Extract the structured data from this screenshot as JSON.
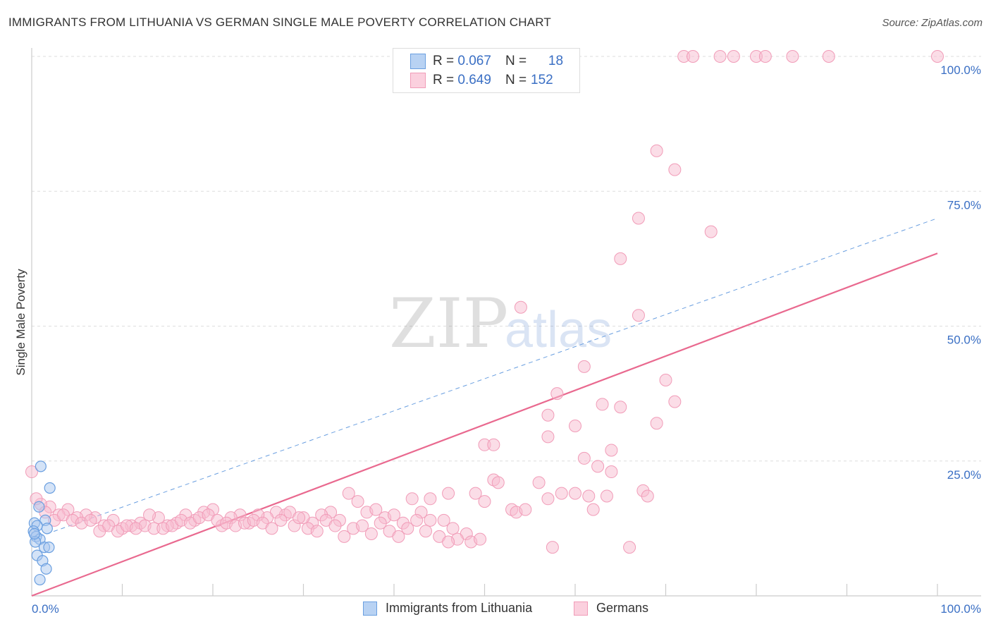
{
  "header": {
    "title": "IMMIGRANTS FROM LITHUANIA VS GERMAN SINGLE MALE POVERTY CORRELATION CHART",
    "source": "Source: ZipAtlas.com"
  },
  "legend_stats": [
    {
      "r_label": "R =",
      "r_value": "0.067",
      "n_label": "N =",
      "n_value": "18"
    },
    {
      "r_label": "R =",
      "r_value": "0.649",
      "n_label": "N =",
      "n_value": "152"
    }
  ],
  "watermark": {
    "zip": "ZIP",
    "atlas": "atlas"
  },
  "chart_data": {
    "type": "scatter",
    "title": "IMMIGRANTS FROM LITHUANIA VS GERMAN SINGLE MALE POVERTY CORRELATION CHART",
    "xlabel": "",
    "ylabel": "Single Male Poverty",
    "xlim": [
      0,
      100
    ],
    "ylim": [
      0,
      100
    ],
    "x_tick_labels": [
      "0.0%",
      "100.0%"
    ],
    "y_tick_labels": [
      "25.0%",
      "50.0%",
      "75.0%",
      "100.0%"
    ],
    "y_ticks": [
      25,
      50,
      75,
      100
    ],
    "grid": true,
    "legend_position": "bottom",
    "colors": {
      "lithuania": "#6a9fe0",
      "germans": "#f19cb8",
      "germans_line": "#e9698f",
      "lithuania_line": "#6a9fe0",
      "axis_text": "#3a6fc4"
    },
    "series": [
      {
        "name": "Immigrants from Lithuania",
        "trend": {
          "x0": 0,
          "y0": 10.5,
          "x1": 100,
          "y1": 70
        },
        "points": [
          [
            1.0,
            24.0
          ],
          [
            2.0,
            20.0
          ],
          [
            0.8,
            16.5
          ],
          [
            1.5,
            14.0
          ],
          [
            0.3,
            13.5
          ],
          [
            0.6,
            13.0
          ],
          [
            1.7,
            12.5
          ],
          [
            0.2,
            12.0
          ],
          [
            0.5,
            11.0
          ],
          [
            0.9,
            10.5
          ],
          [
            0.4,
            10.0
          ],
          [
            1.4,
            9.0
          ],
          [
            1.9,
            9.0
          ],
          [
            0.6,
            7.5
          ],
          [
            1.2,
            6.5
          ],
          [
            1.6,
            5.0
          ],
          [
            0.9,
            3.0
          ],
          [
            0.3,
            11.5
          ]
        ]
      },
      {
        "name": "Germans",
        "trend": {
          "x0": 0,
          "y0": 0,
          "x1": 100,
          "y1": 63.5
        },
        "points": [
          [
            72,
            100
          ],
          [
            73,
            100
          ],
          [
            76,
            100
          ],
          [
            77.5,
            100
          ],
          [
            80,
            100
          ],
          [
            81,
            100
          ],
          [
            84,
            100
          ],
          [
            88,
            100
          ],
          [
            100,
            100
          ],
          [
            69,
            82.5
          ],
          [
            71,
            79
          ],
          [
            67,
            70
          ],
          [
            75,
            67.5
          ],
          [
            65,
            62.5
          ],
          [
            54,
            53.5
          ],
          [
            67,
            52
          ],
          [
            61,
            42.5
          ],
          [
            70,
            40
          ],
          [
            58,
            37.5
          ],
          [
            71,
            36
          ],
          [
            63,
            35.5
          ],
          [
            65,
            35
          ],
          [
            57,
            33.5
          ],
          [
            69,
            32
          ],
          [
            60,
            31.5
          ],
          [
            57,
            29.5
          ],
          [
            50,
            28
          ],
          [
            51,
            28
          ],
          [
            61,
            25.5
          ],
          [
            62.5,
            24
          ],
          [
            64,
            23
          ],
          [
            64,
            27
          ],
          [
            51,
            21.5
          ],
          [
            51.5,
            21
          ],
          [
            56,
            21
          ],
          [
            49,
            19
          ],
          [
            46,
            19
          ],
          [
            58.5,
            19
          ],
          [
            60,
            19
          ],
          [
            61.5,
            18.5
          ],
          [
            63.5,
            18.5
          ],
          [
            67.5,
            19.5
          ],
          [
            68,
            18.5
          ],
          [
            57,
            18
          ],
          [
            50,
            17.5
          ],
          [
            53,
            16
          ],
          [
            53.5,
            15.5
          ],
          [
            54.5,
            16
          ],
          [
            62,
            16
          ],
          [
            42,
            18
          ],
          [
            44,
            18
          ],
          [
            35,
            19
          ],
          [
            36,
            17.5
          ],
          [
            37,
            15.5
          ],
          [
            38,
            16
          ],
          [
            39,
            14.5
          ],
          [
            40,
            15
          ],
          [
            41,
            13.5
          ],
          [
            43,
            15.5
          ],
          [
            44,
            14
          ],
          [
            45.5,
            14
          ],
          [
            46.5,
            12.5
          ],
          [
            48,
            11.5
          ],
          [
            48.5,
            10
          ],
          [
            47,
            10.5
          ],
          [
            33,
            15.5
          ],
          [
            34,
            14
          ],
          [
            32,
            15
          ],
          [
            31,
            13.5
          ],
          [
            30,
            14.5
          ],
          [
            29,
            13
          ],
          [
            28,
            15
          ],
          [
            27,
            15.5
          ],
          [
            26,
            14.5
          ],
          [
            25,
            15
          ],
          [
            24,
            13.5
          ],
          [
            23,
            15
          ],
          [
            22,
            14.5
          ],
          [
            21,
            13
          ],
          [
            20,
            16
          ],
          [
            19,
            15.5
          ],
          [
            18,
            14
          ],
          [
            17,
            15
          ],
          [
            16,
            13.5
          ],
          [
            15,
            13
          ],
          [
            14,
            14.5
          ],
          [
            13,
            15
          ],
          [
            12,
            13.5
          ],
          [
            11,
            13
          ],
          [
            10,
            12.5
          ],
          [
            9,
            14
          ],
          [
            8,
            13
          ],
          [
            7,
            14.5
          ],
          [
            6,
            15
          ],
          [
            5,
            14.5
          ],
          [
            4,
            16
          ],
          [
            3,
            15
          ],
          [
            2,
            16.5
          ],
          [
            1,
            17
          ],
          [
            0.5,
            18
          ],
          [
            0,
            23
          ],
          [
            1.5,
            15.5
          ],
          [
            2.5,
            14
          ],
          [
            3.5,
            15
          ],
          [
            4.5,
            14
          ],
          [
            5.5,
            13.5
          ],
          [
            6.5,
            14
          ],
          [
            7.5,
            12
          ],
          [
            8.5,
            13
          ],
          [
            9.5,
            12
          ],
          [
            10.5,
            13
          ],
          [
            11.5,
            12.5
          ],
          [
            12.5,
            13
          ],
          [
            13.5,
            12.5
          ],
          [
            14.5,
            12.5
          ],
          [
            15.5,
            13
          ],
          [
            16.5,
            14
          ],
          [
            17.5,
            13.5
          ],
          [
            18.5,
            14.5
          ],
          [
            19.5,
            15
          ],
          [
            20.5,
            14
          ],
          [
            21.5,
            13.5
          ],
          [
            22.5,
            13
          ],
          [
            23.5,
            13.5
          ],
          [
            24.5,
            14
          ],
          [
            25.5,
            13.5
          ],
          [
            26.5,
            12.5
          ],
          [
            27.5,
            14
          ],
          [
            28.5,
            15.5
          ],
          [
            29.5,
            14.5
          ],
          [
            30.5,
            12.5
          ],
          [
            31.5,
            12
          ],
          [
            32.5,
            14
          ],
          [
            33.5,
            13
          ],
          [
            34.5,
            11
          ],
          [
            35.5,
            12.5
          ],
          [
            36.5,
            13
          ],
          [
            37.5,
            11.5
          ],
          [
            38.5,
            13.5
          ],
          [
            39.5,
            12
          ],
          [
            40.5,
            11
          ],
          [
            41.5,
            12.5
          ],
          [
            42.5,
            14
          ],
          [
            43.5,
            12
          ],
          [
            45,
            11
          ],
          [
            46,
            10
          ],
          [
            49.5,
            10.5
          ],
          [
            57.5,
            9
          ],
          [
            66,
            9
          ]
        ]
      }
    ]
  }
}
